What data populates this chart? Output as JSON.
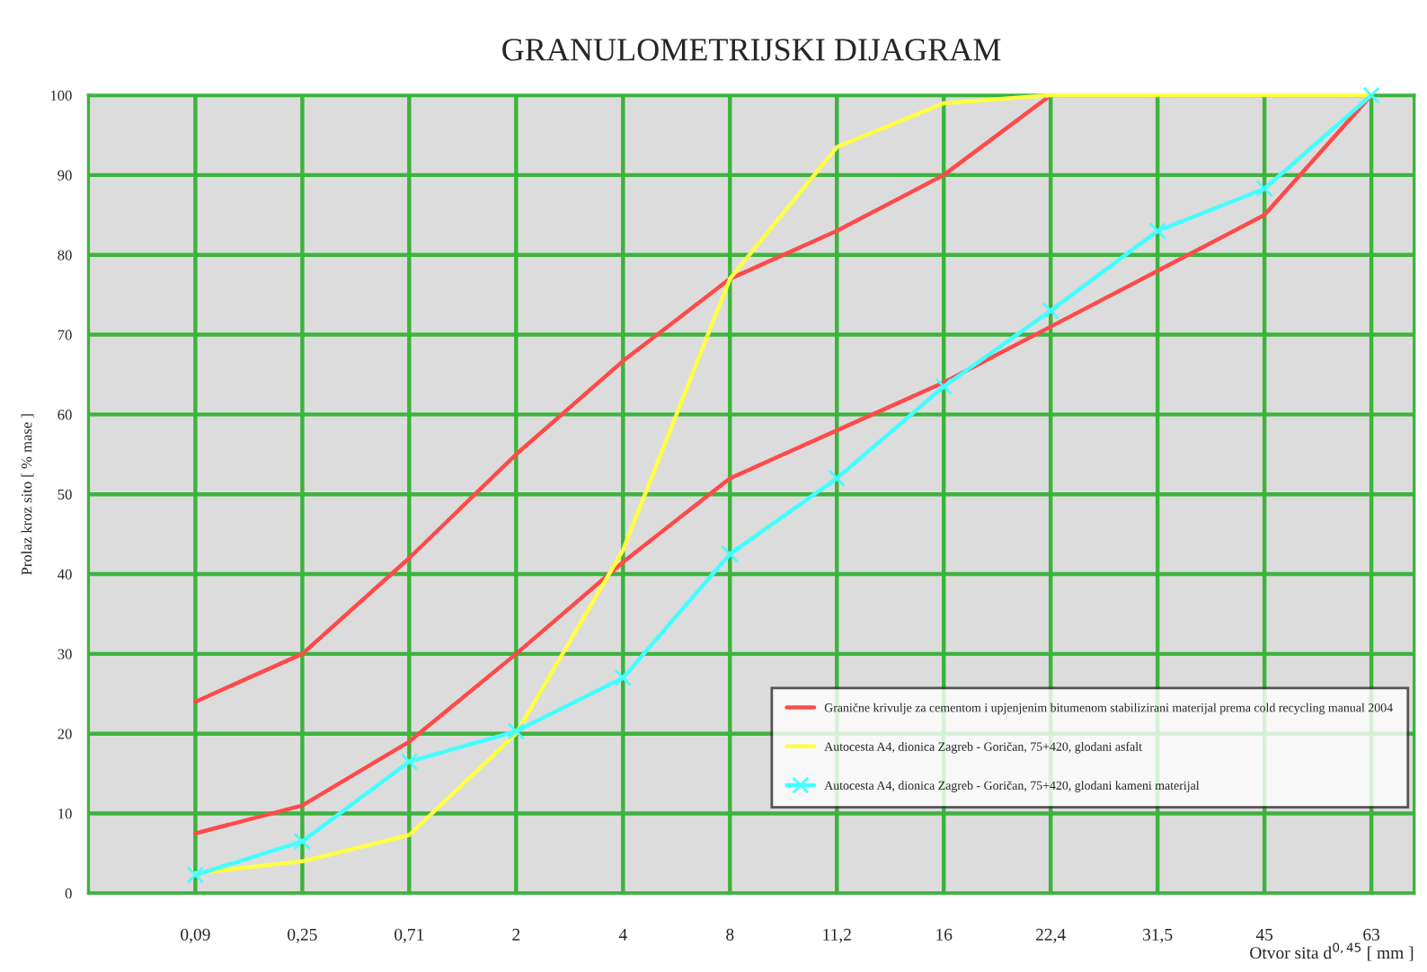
{
  "chart_data": {
    "type": "line",
    "title": "GRANULOMETRIJSKI DIJAGRAM",
    "xlabel": "Otvor sita d$^{0,45}$ [ mm ]",
    "ylabel": "Prolaz kroz sito [ % mase ]",
    "categories": [
      "0,09",
      "0,25",
      "0,71",
      "2",
      "4",
      "8",
      "11,2",
      "16",
      "22,4",
      "31,5",
      "45",
      "63"
    ],
    "series": [
      {
        "name": "Granične krivulje za cementom i upjenjenim bitumenom stabilizirani materijal prema cold recycling manual 2004",
        "color": "#ff4a4a",
        "marker": "none",
        "values": [
          24,
          30,
          42,
          55,
          66.7,
          77,
          83,
          90,
          100,
          null,
          null,
          null
        ]
      },
      {
        "color": "#ff4a4a",
        "marker": "none",
        "values": [
          7.5,
          11,
          19,
          30,
          41.5,
          52,
          58,
          64,
          71,
          78,
          85,
          100
        ]
      },
      {
        "name": "Autocesta A4, dionica Zagreb - Goričan, 75+420, glodani asfalt",
        "color": "#ffff44",
        "marker": "none",
        "values": [
          2.5,
          4,
          7.3,
          20,
          43,
          77,
          93.5,
          99,
          100,
          100,
          100,
          100
        ]
      },
      {
        "name": "Autocesta A4, dionica Zagreb - Goričan, 75+420, glodani kameni materijal",
        "color": "#44ffff",
        "marker": "cross",
        "values": [
          2.3,
          6.5,
          16.5,
          20.3,
          27,
          42.5,
          52,
          63.5,
          73,
          83,
          88.3,
          100
        ]
      }
    ],
    "ylim": [
      0,
      100
    ],
    "yticks": [
      0,
      10,
      20,
      30,
      40,
      50,
      60,
      70,
      80,
      90,
      100
    ],
    "grid": true,
    "legend": "bottom right",
    "line_style": "solid"
  }
}
